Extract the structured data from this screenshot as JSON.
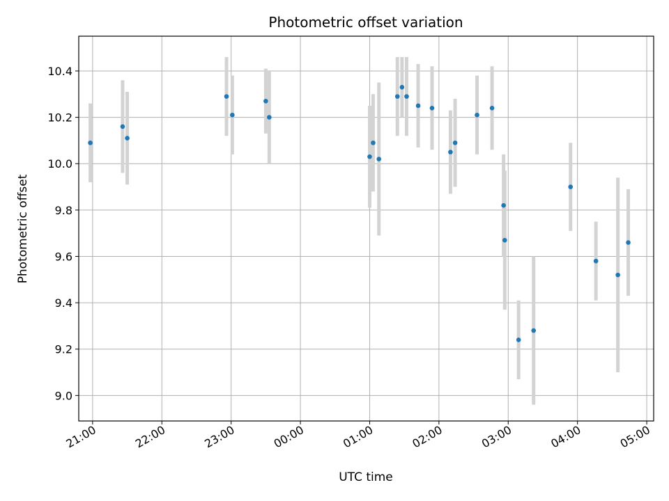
{
  "chart_data": {
    "type": "scatter",
    "title": "Photometric offset variation",
    "xlabel": "UTC time",
    "ylabel": "Photometric offset",
    "x_ticks": [
      "21:00",
      "22:00",
      "23:00",
      "00:00",
      "01:00",
      "02:00",
      "03:00",
      "04:00",
      "05:00"
    ],
    "y_ticks": [
      "9.0",
      "9.2",
      "9.4",
      "9.6",
      "9.8",
      "10.0",
      "10.2",
      "10.4"
    ],
    "xlim": [
      "20:48",
      "05:06"
    ],
    "ylim": [
      8.89,
      10.55
    ],
    "grid": true,
    "marker_color": "#1f77b4",
    "errorbar_color": "#d3d3d3",
    "series": [
      {
        "points": [
          {
            "x": "20:58",
            "y": 10.09,
            "err": 0.17
          },
          {
            "x": "21:26",
            "y": 10.16,
            "err": 0.2
          },
          {
            "x": "21:30",
            "y": 10.11,
            "err": 0.2
          },
          {
            "x": "22:56",
            "y": 10.29,
            "err": 0.17
          },
          {
            "x": "23:01",
            "y": 10.21,
            "err": 0.17
          },
          {
            "x": "23:30",
            "y": 10.27,
            "err": 0.14
          },
          {
            "x": "23:33",
            "y": 10.2,
            "err": 0.2
          },
          {
            "x": "01:00",
            "y": 10.03,
            "err": 0.22
          },
          {
            "x": "01:03",
            "y": 10.09,
            "err": 0.21
          },
          {
            "x": "01:08",
            "y": 10.02,
            "err": 0.33
          },
          {
            "x": "01:24",
            "y": 10.29,
            "err": 0.17
          },
          {
            "x": "01:28",
            "y": 10.33,
            "err": 0.13
          },
          {
            "x": "01:32",
            "y": 10.29,
            "err": 0.17
          },
          {
            "x": "01:42",
            "y": 10.25,
            "err": 0.18
          },
          {
            "x": "01:54",
            "y": 10.24,
            "err": 0.18
          },
          {
            "x": "02:10",
            "y": 10.05,
            "err": 0.18
          },
          {
            "x": "02:14",
            "y": 10.09,
            "err": 0.19
          },
          {
            "x": "02:33",
            "y": 10.21,
            "err": 0.17
          },
          {
            "x": "02:46",
            "y": 10.24,
            "err": 0.18
          },
          {
            "x": "02:56",
            "y": 9.82,
            "err": 0.22
          },
          {
            "x": "02:57",
            "y": 9.67,
            "err": 0.3
          },
          {
            "x": "03:09",
            "y": 9.24,
            "err": 0.17
          },
          {
            "x": "03:22",
            "y": 9.28,
            "err": 0.32
          },
          {
            "x": "03:54",
            "y": 9.9,
            "err": 0.19
          },
          {
            "x": "04:16",
            "y": 9.58,
            "err": 0.17
          },
          {
            "x": "04:35",
            "y": 9.52,
            "err": 0.42
          },
          {
            "x": "04:44",
            "y": 9.66,
            "err": 0.23
          }
        ]
      }
    ]
  }
}
